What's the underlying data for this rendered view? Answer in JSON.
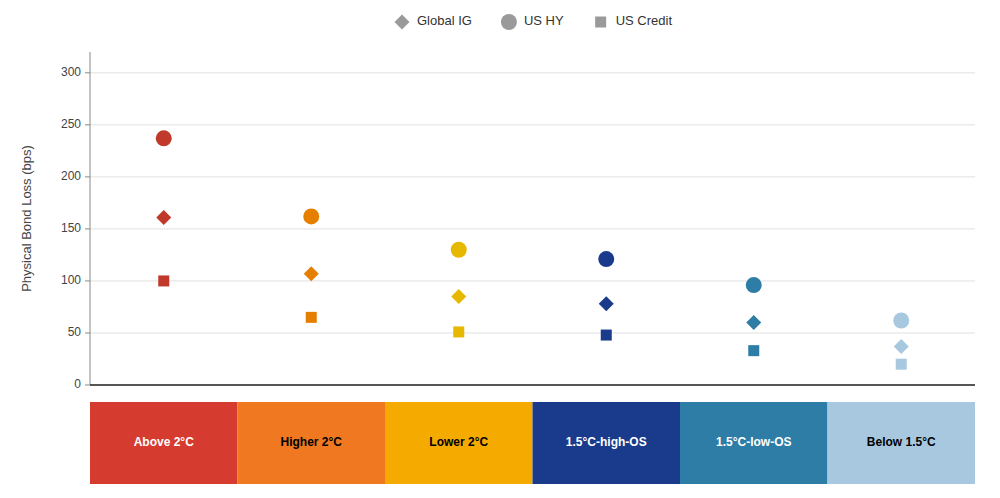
{
  "chart_data": {
    "type": "scatter",
    "ylabel": "Physical Bond Loss (bps)",
    "categories": [
      "Above 2°C",
      "Higher 2°C",
      "Lower 2°C",
      "1.5°C-high-OS",
      "1.5°C-low-OS",
      "Below 1.5°C"
    ],
    "colors": [
      "#d63b2f",
      "#f07820",
      "#f5aa00",
      "#1a3a8c",
      "#2e7da6",
      "#a8c8e0"
    ],
    "series": [
      {
        "name": "Global IG",
        "marker": "diamond",
        "color": "#9a9a9a",
        "values": [
          161,
          107,
          85,
          78,
          60,
          37
        ],
        "colors": [
          "#c0392b",
          "#e67e00",
          "#e6b800",
          "#1a3a8c",
          "#2e7da6",
          "#a8c8e0"
        ]
      },
      {
        "name": "US HY",
        "marker": "circle",
        "color": "#9a9a9a",
        "values": [
          237,
          162,
          130,
          121,
          96,
          62
        ],
        "colors": [
          "#c0392b",
          "#e67e00",
          "#e6b800",
          "#1a3a8c",
          "#2e7da6",
          "#a8c8e0"
        ]
      },
      {
        "name": "US Credit",
        "marker": "square",
        "color": "#9a9a9a",
        "values": [
          100,
          65,
          51,
          48,
          33,
          20
        ],
        "colors": [
          "#c0392b",
          "#e67e00",
          "#e6b800",
          "#1a3a8c",
          "#2e7da6",
          "#a8c8e0"
        ]
      }
    ],
    "ylim": [
      0,
      320
    ],
    "yticks": [
      0,
      50,
      100,
      150,
      200,
      250,
      300
    ],
    "grid": true,
    "legend": "top"
  }
}
